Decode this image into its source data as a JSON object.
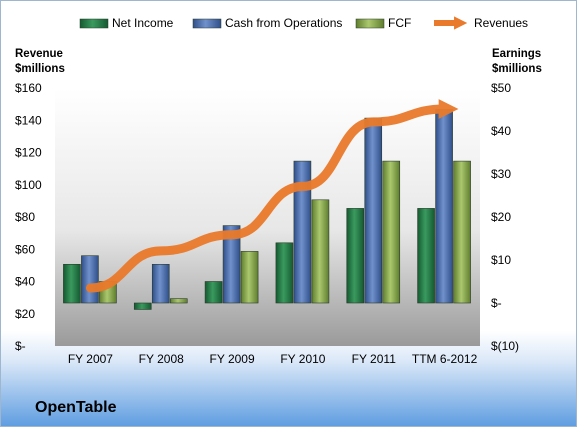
{
  "chart_data": {
    "type": "bar",
    "title": "OpenTable",
    "categories": [
      "FY 2007",
      "FY 2008",
      "FY 2009",
      "FY 2010",
      "FY 2011",
      "TTM 6-2012"
    ],
    "series": [
      {
        "name": "Net Income",
        "axis": "right",
        "color": "#1f7a45",
        "values": [
          9,
          -1.5,
          5,
          14,
          22,
          22
        ]
      },
      {
        "name": "Cash from Operations",
        "axis": "right",
        "color": "#4a6fb0",
        "values": [
          11,
          9,
          18,
          33,
          43,
          45
        ]
      },
      {
        "name": "FCF",
        "axis": "right",
        "color": "#8fb24f",
        "values": [
          5,
          1,
          12,
          24,
          33,
          33
        ]
      },
      {
        "name": "Revenues",
        "axis": "left",
        "type": "line",
        "color": "#ea7a2b",
        "values": [
          36,
          59,
          69,
          99,
          139,
          147
        ]
      }
    ],
    "left_axis": {
      "label_line1": "Revenue",
      "label_line2": "$millions",
      "ylim": [
        0,
        160
      ],
      "ticks": [
        {
          "v": 160,
          "label": "$160"
        },
        {
          "v": 140,
          "label": "$140"
        },
        {
          "v": 120,
          "label": "$120"
        },
        {
          "v": 100,
          "label": "$100"
        },
        {
          "v": 80,
          "label": "$80"
        },
        {
          "v": 60,
          "label": "$60"
        },
        {
          "v": 40,
          "label": "$40"
        },
        {
          "v": 20,
          "label": "$20"
        },
        {
          "v": 0,
          "label": "$-"
        }
      ]
    },
    "right_axis": {
      "label_line1": "Earnings",
      "label_line2": "$millions",
      "ylim": [
        -10,
        50
      ],
      "ticks": [
        {
          "v": 50,
          "label": "$50"
        },
        {
          "v": 40,
          "label": "$40"
        },
        {
          "v": 30,
          "label": "$30"
        },
        {
          "v": 20,
          "label": "$20"
        },
        {
          "v": 10,
          "label": "$10"
        },
        {
          "v": 0,
          "label": "$-"
        },
        {
          "v": -10,
          "label": "$(10)"
        }
      ]
    },
    "legend": [
      "Net Income",
      "Cash from Operations",
      "FCF",
      "Revenues"
    ],
    "legend_position": "top",
    "grid": false
  }
}
